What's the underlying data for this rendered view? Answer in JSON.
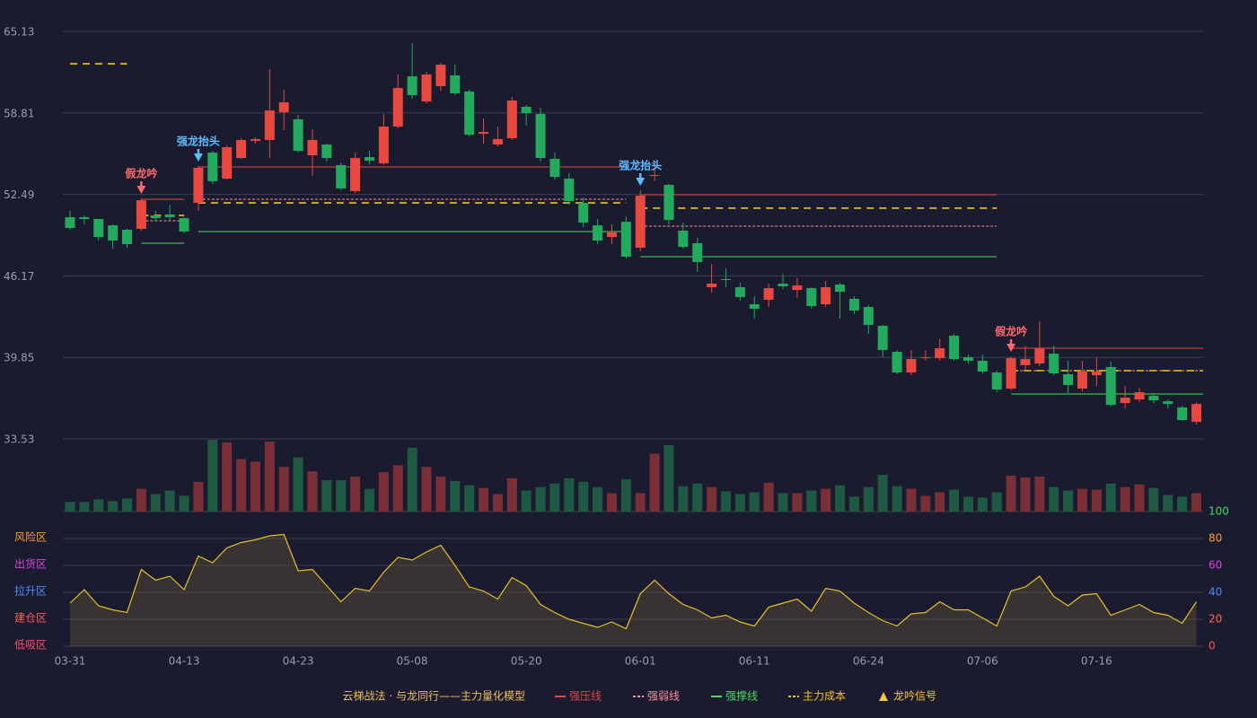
{
  "chart_data": {
    "type": "candlestick",
    "categories": [
      "03-31",
      null,
      null,
      null,
      null,
      null,
      null,
      null,
      "04-13",
      null,
      null,
      null,
      null,
      null,
      null,
      null,
      "04-23",
      null,
      null,
      null,
      null,
      null,
      null,
      null,
      "05-08",
      null,
      null,
      null,
      null,
      null,
      null,
      null,
      "05-20",
      null,
      null,
      null,
      null,
      null,
      null,
      null,
      "06-01",
      null,
      null,
      null,
      null,
      null,
      null,
      null,
      "06-11",
      null,
      null,
      null,
      null,
      null,
      null,
      null,
      "06-24",
      null,
      null,
      null,
      null,
      null,
      null,
      null,
      "07-06",
      null,
      null,
      null,
      null,
      null,
      null,
      null,
      "07-16",
      null,
      null,
      null,
      null,
      null,
      null,
      null
    ],
    "open": [
      50.72,
      50.72,
      50.58,
      50.09,
      49.75,
      49.82,
      50.86,
      50.93,
      50.65,
      51.83,
      55.73,
      53.71,
      55.31,
      56.64,
      56.71,
      58.86,
      58.31,
      55.52,
      56.36,
      54.76,
      52.74,
      55.38,
      54.9,
      57.75,
      61.65,
      59.7,
      60.88,
      61.72,
      60.47,
      57.19,
      56.36,
      56.85,
      59.28,
      58.73,
      55.25,
      53.71,
      51.83,
      50.09,
      49.19,
      50.37,
      48.35,
      53.92,
      53.23,
      49.68,
      48.7,
      45.29,
      45.92,
      45.29,
      43.97,
      44.32,
      45.57,
      45.08,
      45.22,
      43.97,
      45.5,
      44.39,
      43.76,
      42.3,
      40.28,
      38.68,
      39.79,
      39.79,
      41.53,
      39.86,
      39.59,
      38.68,
      37.43,
      39.24,
      39.38,
      40.14,
      38.54,
      37.43,
      38.47,
      39.1,
      36.31,
      36.59,
      36.87,
      36.45,
      35.97,
      34.85
    ],
    "high": [
      51.21,
      50.86,
      50.58,
      50.16,
      49.82,
      52.18,
      51.21,
      51.7,
      50.72,
      54.69,
      55.87,
      56.29,
      56.85,
      56.92,
      62.21,
      60.6,
      58.66,
      57.54,
      56.43,
      54.97,
      55.73,
      55.87,
      58.73,
      61.79,
      64.22,
      62.0,
      62.69,
      62.55,
      60.6,
      58.38,
      57.75,
      60.05,
      59.42,
      59.21,
      55.73,
      54.13,
      52.25,
      50.58,
      50.16,
      50.79,
      52.81,
      55.04,
      53.3,
      50.3,
      49.12,
      47.1,
      46.75,
      45.64,
      44.6,
      45.57,
      46.34,
      45.99,
      45.29,
      45.78,
      45.64,
      44.6,
      43.9,
      42.37,
      40.42,
      40.42,
      40.42,
      41.26,
      41.67,
      40.07,
      40.07,
      38.82,
      39.93,
      40.77,
      42.65,
      40.77,
      39.59,
      39.59,
      39.86,
      39.52,
      37.64,
      37.5,
      37.08,
      36.59,
      36.11,
      36.38
    ],
    "low": [
      49.75,
      50.16,
      48.91,
      48.29,
      48.35,
      49.68,
      50.37,
      50.51,
      49.47,
      51.21,
      53.3,
      53.64,
      55.25,
      56.43,
      55.31,
      57.47,
      55.73,
      53.92,
      55.04,
      52.81,
      52.6,
      54.83,
      54.76,
      57.61,
      59.91,
      59.56,
      60.53,
      60.19,
      56.99,
      56.43,
      56.22,
      56.71,
      57.82,
      55.04,
      53.64,
      51.7,
      49.96,
      48.63,
      48.63,
      47.52,
      48.08,
      53.51,
      50.16,
      48.29,
      46.48,
      44.87,
      45.29,
      44.25,
      42.86,
      43.76,
      45.15,
      44.46,
      43.62,
      43.76,
      42.86,
      43.2,
      41.67,
      39.86,
      38.54,
      38.47,
      39.59,
      39.59,
      39.59,
      39.38,
      38.61,
      37.15,
      37.29,
      38.82,
      39.17,
      38.47,
      37.08,
      37.22,
      37.64,
      36.04,
      35.9,
      36.38,
      36.31,
      35.9,
      34.92,
      34.64
    ],
    "close": [
      49.89,
      50.58,
      49.19,
      48.91,
      48.63,
      52.04,
      50.65,
      50.72,
      49.61,
      54.55,
      53.51,
      56.15,
      56.71,
      56.78,
      59.0,
      59.63,
      55.87,
      56.71,
      55.31,
      52.95,
      55.31,
      55.11,
      57.75,
      60.74,
      60.19,
      61.79,
      62.55,
      60.33,
      57.12,
      57.33,
      56.78,
      59.77,
      58.79,
      55.31,
      53.85,
      51.97,
      50.3,
      48.91,
      49.54,
      47.66,
      52.39,
      53.99,
      50.51,
      48.42,
      47.24,
      45.57,
      45.85,
      44.53,
      43.62,
      45.22,
      45.36,
      45.43,
      43.83,
      45.29,
      44.94,
      43.48,
      42.37,
      40.42,
      38.68,
      39.72,
      39.86,
      40.56,
      39.72,
      39.59,
      38.75,
      37.36,
      39.79,
      39.72,
      40.56,
      38.61,
      37.71,
      38.75,
      38.75,
      36.17,
      36.73,
      37.15,
      36.52,
      36.24,
      34.99,
      36.24
    ],
    "up_color": "#e8483f",
    "down_color": "#22ab5c",
    "ylim": [
      33.53,
      65.13
    ],
    "yticks": [
      65.13,
      58.81,
      52.49,
      46.17,
      39.85,
      33.53
    ],
    "volume": [
      11,
      11,
      14,
      12,
      15,
      26,
      20,
      24,
      18,
      34,
      82,
      79,
      60,
      57,
      80,
      51,
      62,
      46,
      36,
      36,
      40,
      26,
      45,
      53,
      73,
      51,
      40,
      35,
      30,
      27,
      20,
      38,
      24,
      28,
      32,
      38,
      34,
      28,
      21,
      37,
      21,
      66,
      76,
      29,
      32,
      28,
      23,
      20,
      22,
      33,
      21,
      21,
      24,
      26,
      30,
      17,
      28,
      42,
      29,
      26,
      18,
      22,
      25,
      17,
      16,
      22,
      41,
      39,
      40,
      28,
      24,
      26,
      25,
      32,
      28,
      31,
      27,
      19,
      17,
      21
    ],
    "volume_up_color": "#7a2e36",
    "volume_down_color": "#1d5a41",
    "indicator": {
      "values": [
        32,
        42,
        30,
        27,
        25,
        57,
        49,
        52,
        42,
        67,
        62,
        73,
        77,
        79,
        82,
        83,
        56,
        57,
        45,
        33,
        43,
        41,
        55,
        66,
        64,
        70,
        75,
        60,
        44,
        41,
        35,
        51,
        45,
        31,
        25,
        20,
        17,
        14,
        18,
        13,
        39,
        49,
        39,
        31,
        27,
        21,
        23,
        18,
        15,
        29,
        32,
        35,
        26,
        43,
        41,
        32,
        25,
        19,
        15,
        24,
        25,
        33,
        27,
        27,
        21,
        15,
        41,
        44,
        52,
        37,
        30,
        38,
        39,
        23,
        27,
        31,
        25,
        23,
        17,
        33
      ],
      "color": "#e5c02a",
      "ylim": [
        0,
        100
      ],
      "yticks": [
        0,
        20,
        40,
        60,
        80,
        100
      ],
      "ytick_colors": [
        "#ff4d4d",
        "#ff6a4d",
        "#4d8cff",
        "#e040e0",
        "#ff9a2e",
        "#3ddc5c"
      ],
      "zones": [
        {
          "value": 80,
          "label": "风险区",
          "color": "#ff9a2e"
        },
        {
          "value": 60,
          "label": "出货区",
          "color": "#e040e0"
        },
        {
          "value": 40,
          "label": "拉升区",
          "color": "#4d8cff"
        },
        {
          "value": 20,
          "label": "建仓区",
          "color": "#ff5a5a"
        },
        {
          "value": 0,
          "label": "低吸区",
          "color": "#ff4d6a"
        }
      ]
    },
    "legend_title": "云梯战法 · 与龙同行——主力量化模型",
    "legend": [
      {
        "name": "强压线",
        "color": "#e04848",
        "style": "solid"
      },
      {
        "name": "强弱线",
        "color": "#ff8fa0",
        "style": "dotted"
      },
      {
        "name": "强撑线",
        "color": "#4cd964",
        "style": "solid"
      },
      {
        "name": "主力成本",
        "color": "#f5c518",
        "style": "dashed"
      },
      {
        "name": "龙吟信号",
        "color": "#f5c542",
        "style": "triangle"
      }
    ],
    "levels": [
      {
        "from": 0,
        "to": 4,
        "values": [
          null,
          null,
          null,
          62.62
        ]
      },
      {
        "from": 5,
        "to": 8,
        "values": [
          52.11,
          50.44,
          48.7,
          50.86
        ]
      },
      {
        "from": 9,
        "to": 39,
        "values": [
          54.62,
          52.11,
          49.61,
          51.83
        ]
      },
      {
        "from": 40,
        "to": 65,
        "values": [
          52.46,
          50.03,
          47.66,
          51.42
        ]
      },
      {
        "from": 66,
        "to": 79,
        "values": [
          40.56,
          38.82,
          37.01,
          38.82
        ]
      }
    ],
    "signals": [
      {
        "index": 5,
        "label": "假龙吟",
        "color": "#ff6b6b"
      },
      {
        "index": 9,
        "label": "强龙抬头",
        "color": "#5bbcff"
      },
      {
        "index": 40,
        "label": "强龙抬头",
        "color": "#5bbcff"
      },
      {
        "index": 66,
        "label": "假龙吟",
        "color": "#ff6b6b"
      }
    ]
  }
}
